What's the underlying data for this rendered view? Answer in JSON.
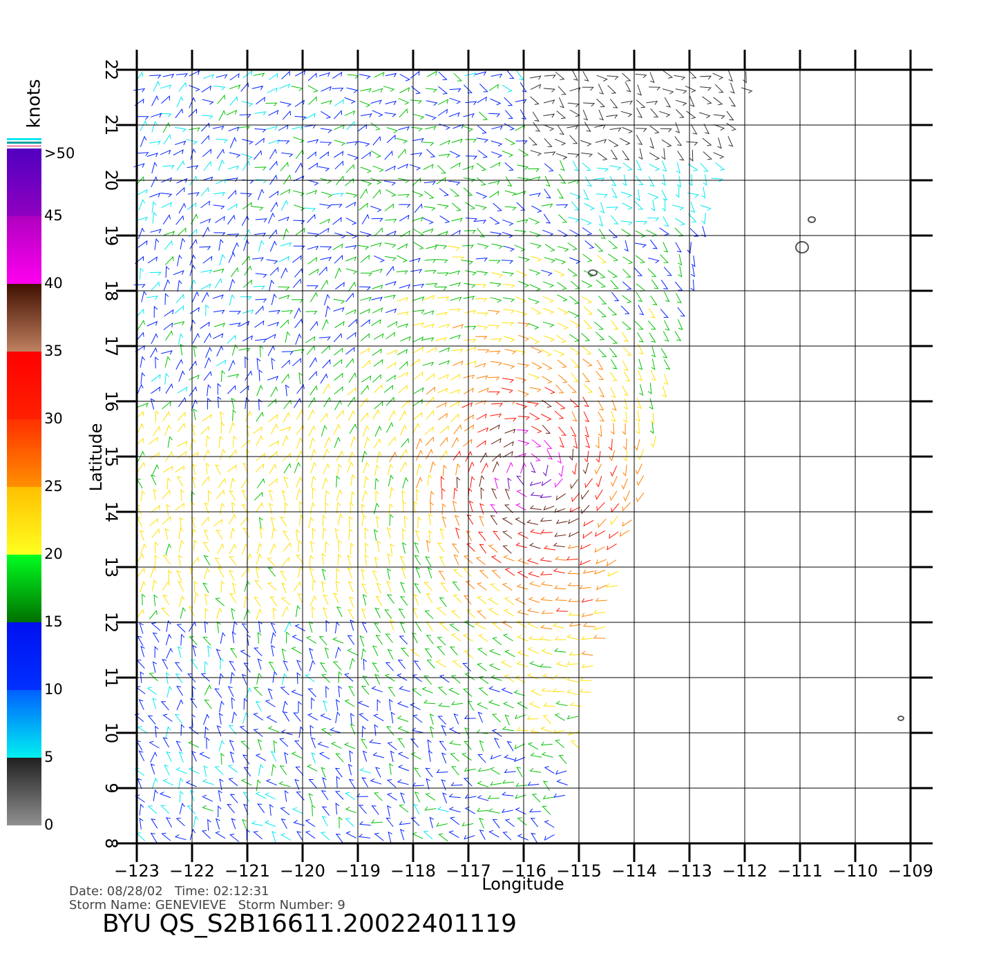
{
  "map": {
    "xlabel": "Longitude",
    "ylabel": "Latitude",
    "xlim": [
      -123,
      -109
    ],
    "ylim": [
      8,
      22
    ],
    "xticks": [
      {
        "value": -123,
        "label": "−123"
      },
      {
        "value": -122,
        "label": "−122"
      },
      {
        "value": -121,
        "label": "−121"
      },
      {
        "value": -120,
        "label": "−120"
      },
      {
        "value": -119,
        "label": "−119"
      },
      {
        "value": -118,
        "label": "−118"
      },
      {
        "value": -117,
        "label": "−117"
      },
      {
        "value": -116,
        "label": "−116"
      },
      {
        "value": -115,
        "label": "−115"
      },
      {
        "value": -114,
        "label": "−114"
      },
      {
        "value": -113,
        "label": "−113"
      },
      {
        "value": -112,
        "label": "−112"
      },
      {
        "value": -111,
        "label": "−111"
      },
      {
        "value": -110,
        "label": "−110"
      },
      {
        "value": -109,
        "label": "−109"
      }
    ],
    "yticks": [
      8,
      9,
      10,
      11,
      12,
      13,
      14,
      15,
      16,
      17,
      18,
      19,
      20,
      21,
      22
    ],
    "grid": true,
    "colorbar": {
      "label": "knots",
      "ticks": [
        0,
        5,
        10,
        15,
        20,
        25,
        30,
        35,
        40,
        45,
        {
          "value": 50,
          "label": ">50"
        }
      ],
      "colors": [
        "#808080",
        "#00e8f0",
        "#0020ff",
        "#00c000",
        "#ffe000",
        "#ff8000",
        "#ff1000",
        "#602010",
        "#f000f0",
        "#6000c0"
      ]
    }
  },
  "footer": {
    "line1": "Date: 08/28/02   Time: 02:12:31",
    "line2": "Storm Name: GENEVIEVE   Storm Number: 9",
    "title": "BYU QS_S2B16611.20022401119"
  }
}
